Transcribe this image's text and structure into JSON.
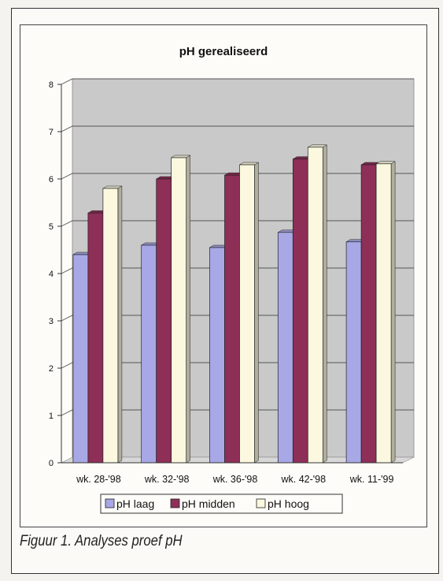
{
  "chart_data": {
    "type": "bar",
    "title": "pH gerealiseerd",
    "xlabel": "",
    "ylabel": "",
    "categories": [
      "wk. 28-'98",
      "wk. 32-'98",
      "wk. 36-'98",
      "wk. 42-'98",
      "wk. 11-'99"
    ],
    "series": [
      {
        "name": "pH laag",
        "values": [
          4.4,
          4.6,
          4.55,
          4.87,
          4.67
        ],
        "color": "#a9a8e6"
      },
      {
        "name": "pH midden",
        "values": [
          5.28,
          6.0,
          6.08,
          6.42,
          6.3
        ],
        "color": "#8e2f58"
      },
      {
        "name": "pH hoog",
        "values": [
          5.8,
          6.45,
          6.3,
          6.67,
          6.32
        ],
        "color": "#fbf8df"
      }
    ],
    "ylim": [
      0,
      8
    ],
    "yticks": [
      0,
      1,
      2,
      3,
      4,
      5,
      6,
      7,
      8
    ],
    "grid": true,
    "legend": "bottom",
    "plot_background": "#c9c9c9"
  },
  "caption": "Figuur 1. Analyses proef pH"
}
